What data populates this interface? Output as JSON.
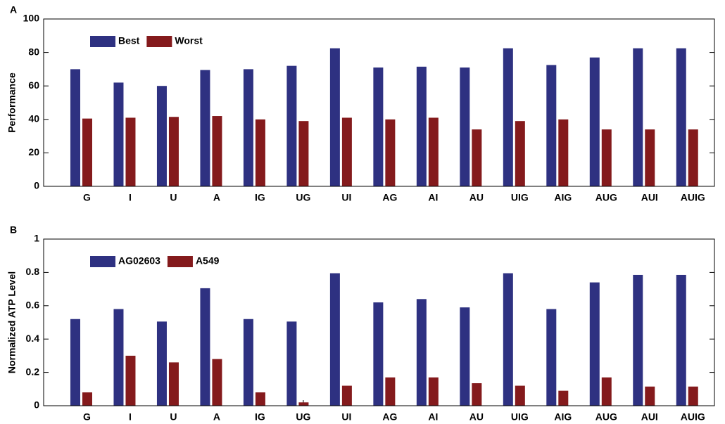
{
  "chart_data": [
    {
      "type": "bar",
      "panel_label": "A",
      "ylabel": "Performance",
      "categories": [
        "G",
        "I",
        "U",
        "A",
        "IG",
        "UG",
        "UI",
        "AG",
        "AI",
        "AU",
        "UIG",
        "AIG",
        "AUG",
        "AUI",
        "AUIG"
      ],
      "series": [
        {
          "name": "Best",
          "color": "#2e3181",
          "values": [
            70,
            62,
            60,
            69.5,
            70,
            72,
            82.5,
            71,
            71.5,
            71,
            82.5,
            72.5,
            77,
            82.5,
            82.5
          ]
        },
        {
          "name": "Worst",
          "color": "#841a1c",
          "values": [
            40.5,
            41,
            41.5,
            42,
            40,
            39,
            41,
            40,
            41,
            34,
            39,
            40,
            34,
            34,
            34
          ]
        }
      ],
      "ylim": [
        0,
        100
      ],
      "yticks": [
        0,
        20,
        40,
        60,
        80,
        100
      ],
      "legend": "upper left"
    },
    {
      "type": "bar",
      "panel_label": "B",
      "ylabel": "Normalized ATP Level",
      "categories": [
        "G",
        "I",
        "U",
        "A",
        "IG",
        "UG",
        "UI",
        "AG",
        "AI",
        "AU",
        "UIG",
        "AIG",
        "AUG",
        "AUI",
        "AUIG"
      ],
      "series": [
        {
          "name": "AG02603",
          "color": "#2e3181",
          "values": [
            0.52,
            0.58,
            0.505,
            0.705,
            0.52,
            0.505,
            0.795,
            0.62,
            0.64,
            0.59,
            0.795,
            0.58,
            0.74,
            0.785,
            0.785
          ]
        },
        {
          "name": "A549",
          "color": "#841a1c",
          "values": [
            0.08,
            0.3,
            0.26,
            0.28,
            0.08,
            0.02,
            0.12,
            0.17,
            0.17,
            0.135,
            0.12,
            0.09,
            0.17,
            0.115,
            0.115
          ]
        }
      ],
      "ylim": [
        0,
        1
      ],
      "yticks": [
        0,
        0.2,
        0.4,
        0.6,
        0.8,
        1
      ],
      "legend": "upper left"
    }
  ]
}
